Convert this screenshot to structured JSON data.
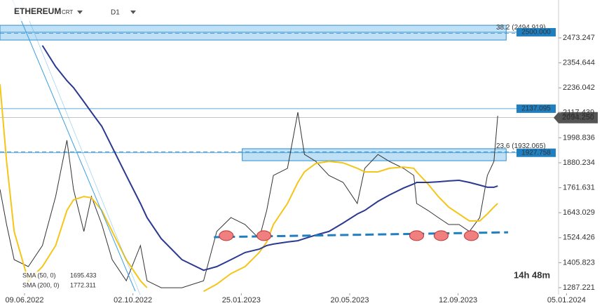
{
  "chart_data": {
    "type": "line",
    "title": "ETHEREUM",
    "subtitle": "CRT",
    "timeframe": "D1",
    "timer": "14h 48m",
    "x": [
      "2022-05-14",
      "2022-05-21",
      "2022-05-29",
      "2022-06-13",
      "2022-06-28",
      "2022-07-12",
      "2022-07-24",
      "2022-07-31",
      "2022-08-11",
      "2022-08-19",
      "2022-08-30",
      "2022-09-10",
      "2022-09-25",
      "2022-10-10",
      "2022-10-17",
      "2022-11-01",
      "2022-11-23",
      "2022-12-16",
      "2022-12-30",
      "2023-01-14",
      "2023-01-29",
      "2023-02-13",
      "2023-02-21",
      "2023-02-28",
      "2023-03-15",
      "2023-03-26",
      "2023-04-02",
      "2023-04-14",
      "2023-04-28",
      "2023-05-13",
      "2023-05-28",
      "2023-06-05",
      "2023-06-19",
      "2023-07-01",
      "2023-07-16",
      "2023-07-27",
      "2023-07-30",
      "2023-08-11",
      "2023-08-22",
      "2023-09-02",
      "2023-09-13",
      "2023-09-24",
      "2023-10-05",
      "2023-10-13",
      "2023-10-20",
      "2023-10-24"
    ],
    "series": [
      {
        "name": "ETHEREUM",
        "color": "#333333",
        "width": 1,
        "values": [
          1754,
          1587,
          1420,
          1387,
          1487,
          1720,
          1987,
          1754,
          1554,
          1720,
          1587,
          1420,
          1320,
          1487,
          1320,
          1287,
          1287,
          1320,
          1554,
          1620,
          1587,
          1520,
          1654,
          1820,
          1854,
          2120,
          1920,
          1887,
          1820,
          1787,
          1687,
          1854,
          1920,
          1887,
          1854,
          1820,
          1687,
          1654,
          1620,
          1587,
          1587,
          1554,
          1620,
          1820,
          1887,
          2103
        ]
      },
      {
        "name": "SMA (50, 0)",
        "color": "#f5c518",
        "width": 2,
        "value_label": "1695.433",
        "values": [
          2253,
          1887,
          1554,
          1320,
          1387,
          1487,
          1654,
          1704,
          1720,
          1714,
          1654,
          1554,
          1420,
          1320,
          1287,
          null,
          null,
          1270,
          1304,
          1354,
          1387,
          1454,
          1504,
          1587,
          1687,
          1787,
          1837,
          1877,
          1887,
          1880,
          1854,
          1837,
          1837,
          1854,
          1860,
          1854,
          1837,
          1780,
          1720,
          1670,
          1637,
          1604,
          1604,
          1637,
          1670,
          1687
        ]
      },
      {
        "name": "SMA (200, 0)",
        "color": "#2b3990",
        "width": 2,
        "value_label": "1772.311",
        "values": [
          null,
          null,
          null,
          null,
          2437,
          2337,
          2270,
          2237,
          2170,
          2120,
          2053,
          1954,
          1820,
          1687,
          1620,
          1520,
          1420,
          1370,
          1387,
          1420,
          1454,
          1470,
          1487,
          1494,
          1504,
          1510,
          1520,
          1537,
          1554,
          1594,
          1637,
          1654,
          1697,
          1727,
          1760,
          1780,
          1787,
          1787,
          1790,
          1794,
          1797,
          1787,
          1774,
          1764,
          1764,
          1770
        ]
      }
    ],
    "ylim": [
      1253.9,
      2653.1
    ],
    "yticks": [
      {
        "value": 2473.247,
        "label": "2473.247"
      },
      {
        "value": 2354.644,
        "label": "2354.644"
      },
      {
        "value": 2236.042,
        "label": "2236.042"
      },
      {
        "value": 2117.439,
        "label": "2117.439"
      },
      {
        "value": 1998.836,
        "label": "1998.836"
      },
      {
        "value": 1880.234,
        "label": "1880.234"
      },
      {
        "value": 1761.631,
        "label": "1761.631"
      },
      {
        "value": 1643.029,
        "label": "1643.029"
      },
      {
        "value": 1524.426,
        "label": "1524.426"
      },
      {
        "value": 1405.823,
        "label": "1405.823"
      },
      {
        "value": 1287.221,
        "label": "1287.221"
      }
    ],
    "xticks": [
      {
        "value": "2022-06-09",
        "label": "09.06.2022"
      },
      {
        "value": "2022-10-02",
        "label": "02.10.2022"
      },
      {
        "value": "2023-01-25",
        "label": "25.01.2023"
      },
      {
        "value": "2023-05-20",
        "label": "20.05.2023"
      },
      {
        "value": "2023-09-12",
        "label": "12.09.2023"
      },
      {
        "value": "2024-01-05",
        "label": "05.01.2024"
      }
    ],
    "levels": [
      {
        "value": 2500,
        "label": "2500.000"
      },
      {
        "value": 2137.095,
        "label": "2137.095"
      },
      {
        "value": 1927.758,
        "label": "1927.758"
      }
    ],
    "current_price": {
      "value": 2094.25,
      "label": "2094.250"
    },
    "fib_levels": [
      {
        "value": 2494.919,
        "label": "38.2 (2494.919)"
      },
      {
        "value": 1932.065,
        "label": "23.6 (1932.065)"
      }
    ],
    "zones": [
      {
        "from": 2463,
        "to": 2533,
        "start": "2022-05-14",
        "end": "2023-10-33"
      },
      {
        "from": 1890,
        "to": 1947,
        "start": "2023-01-26",
        "end": "2023-10-33"
      }
    ],
    "support_line": {
      "x": [
        "2022-12-27",
        "2023-11-04"
      ],
      "values": [
        1527,
        1550
      ]
    },
    "touches": {
      "x": [
        "2023-01-09",
        "2023-02-18",
        "2023-07-30",
        "2023-08-25",
        "2023-09-26"
      ],
      "values": [
        1534,
        1534,
        1534,
        1534,
        1534
      ]
    }
  }
}
